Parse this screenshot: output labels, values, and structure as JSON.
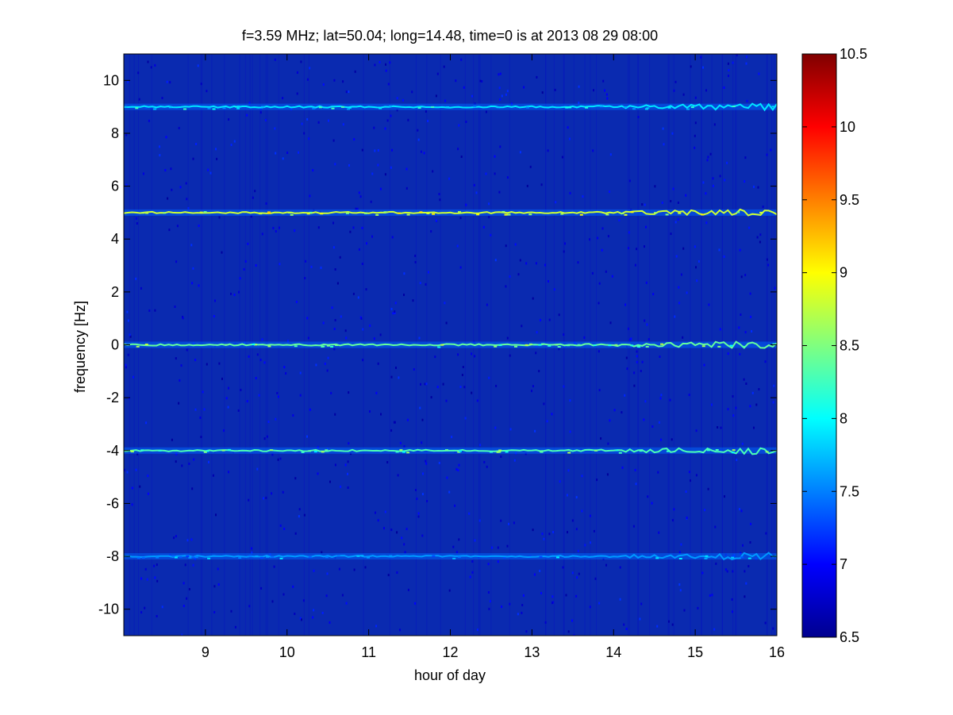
{
  "chart_data": {
    "type": "heatmap",
    "title": "f=3.59 MHz;  lat=50.04; long=14.48, time=0 is at 2013 08 29 08:00",
    "xlabel": "hour of day",
    "ylabel": "frequency [Hz]",
    "xlim": [
      8,
      16
    ],
    "ylim": [
      -11,
      11
    ],
    "xticks": [
      "9",
      "10",
      "11",
      "12",
      "13",
      "14",
      "15",
      "16"
    ],
    "yticks": [
      "10",
      "8",
      "6",
      "4",
      "2",
      "0",
      "-2",
      "-4",
      "-6",
      "-8",
      "-10"
    ],
    "colorbar": {
      "range": [
        6.5,
        10.5
      ],
      "ticks": [
        "10.5",
        "10",
        "9.5",
        "9",
        "8.5",
        "8",
        "7.5",
        "7",
        "6.5"
      ],
      "colormap": "jet"
    },
    "background_level": 6.6,
    "lines": [
      {
        "frequency_hz": 9,
        "peak_level": 8.3
      },
      {
        "frequency_hz": 5,
        "peak_level": 9.2
      },
      {
        "frequency_hz": 0,
        "peak_level": 8.8
      },
      {
        "frequency_hz": -4,
        "peak_level": 8.7
      },
      {
        "frequency_hz": -8,
        "peak_level": 8.0
      }
    ],
    "colors": {
      "background": "#00008f",
      "plot_bg": "#0a2ab0"
    }
  }
}
